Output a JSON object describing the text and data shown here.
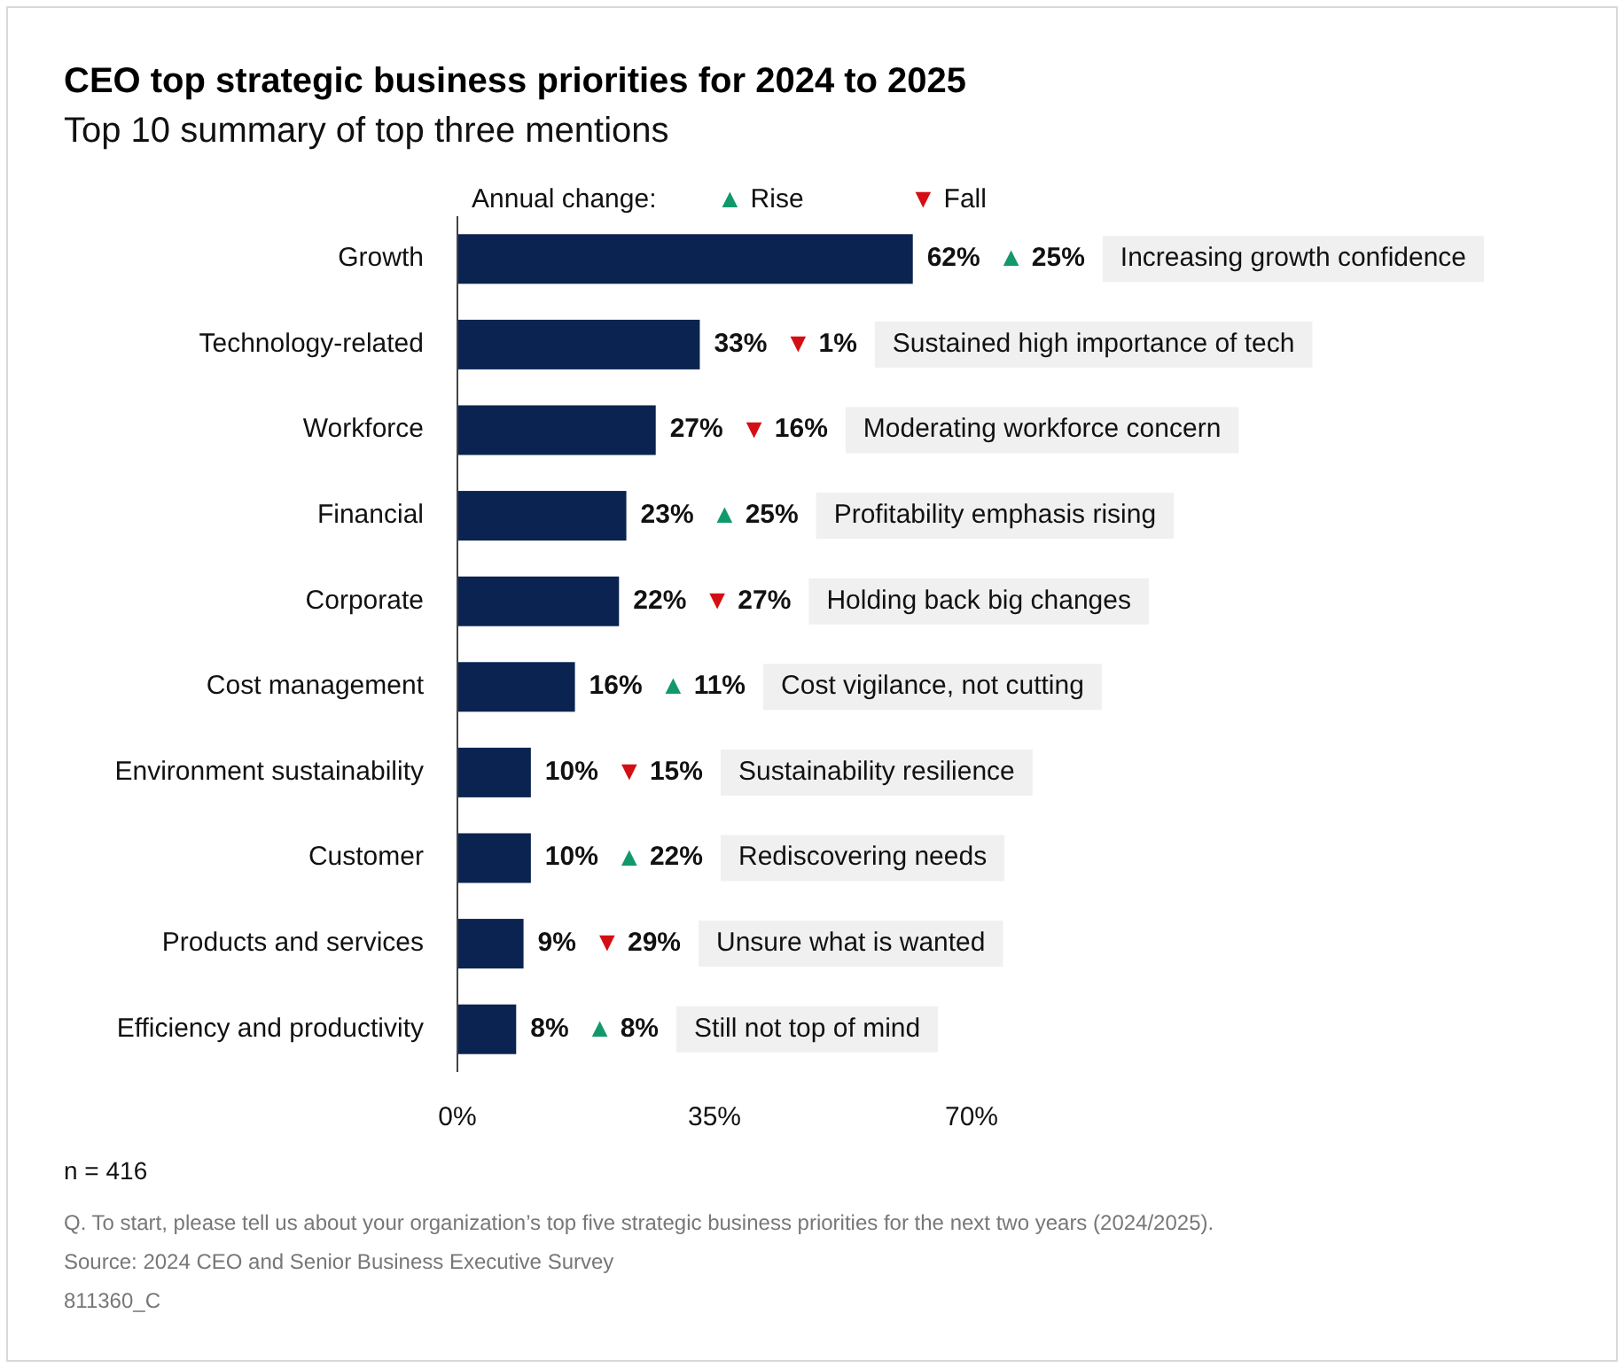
{
  "chart_data": {
    "type": "bar",
    "orientation": "horizontal",
    "title": "CEO top strategic business priorities for 2024 to 2025",
    "subtitle": "Top 10 summary of top three mentions",
    "categories": [
      "Growth",
      "Technology-related",
      "Workforce",
      "Financial",
      "Corporate",
      "Cost management",
      "Environment sustainability",
      "Customer",
      "Products and services",
      "Efficiency and productivity"
    ],
    "values": [
      62,
      33,
      27,
      23,
      22,
      16,
      10,
      10,
      9,
      8
    ],
    "value_labels": [
      "62%",
      "33%",
      "27%",
      "23%",
      "22%",
      "16%",
      "10%",
      "10%",
      "9%",
      "8%"
    ],
    "color": "#0b2350",
    "xlim": [
      0,
      70
    ],
    "xticks": [
      {
        "value": 0,
        "label": "0%"
      },
      {
        "value": 35,
        "label": "35%"
      },
      {
        "value": 70,
        "label": "70%"
      }
    ],
    "grid": false,
    "legend_title": "Annual change:",
    "annotations": [
      "▲ Rise",
      "▼ Fall",
      "▲ 25%",
      "Increasing growth confidence",
      "▼ 1%",
      "Sustained high importance of tech",
      "▼ 16%",
      "Moderating workforce concern",
      "▲ 25%",
      "Profitability emphasis rising",
      "▼ 27%",
      "Holding back big changes",
      "▲ 11%",
      "Cost vigilance, not cutting",
      "▼ 15%",
      "Sustainability resilience",
      "▲ 22%",
      "Rediscovering needs",
      "▼ 29%",
      "Unsure what is wanted",
      "▲ 8%",
      "Still not top of mind",
      "n = 416",
      "Q. To start, please tell us about your organization’s top five strategic business priorities for the next two years (2024/2025).",
      "Source: 2024 CEO and Senior Business Executive Survey",
      "811360_C"
    ]
  }
}
